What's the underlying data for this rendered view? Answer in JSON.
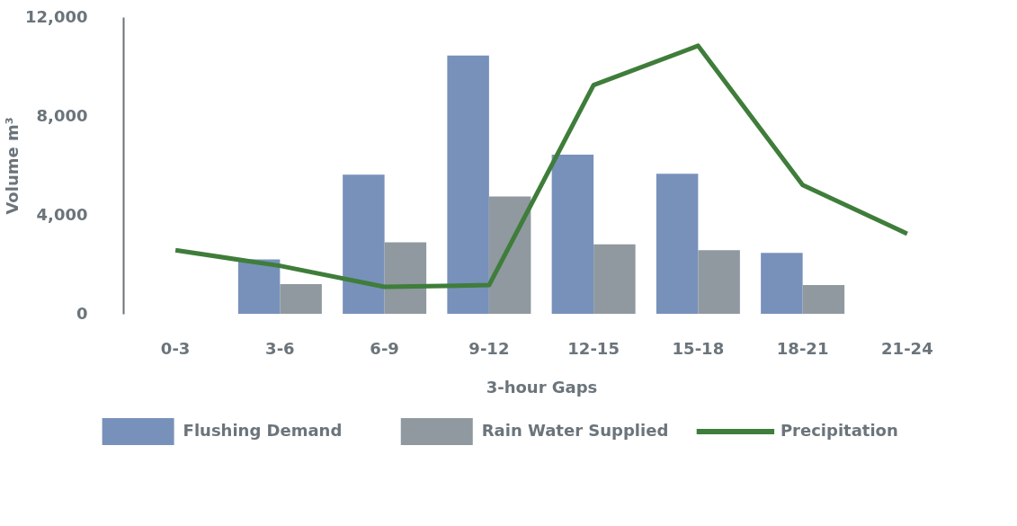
{
  "chart_data": {
    "type": "bar",
    "xlabel": "3-hour Gaps",
    "ylabel": "Volume m³",
    "categories": [
      "0-3",
      "3-6",
      "6-9",
      "9-12",
      "12-15",
      "15-18",
      "18-21",
      "21-24"
    ],
    "ylim": [
      0,
      12000
    ],
    "yticks": [
      0,
      {
        "value": 4000,
        "label": "4,000"
      },
      {
        "value": 8000,
        "label": "8,000"
      },
      {
        "value": 12000,
        "label": "12,000"
      }
    ],
    "grid": false,
    "legend": "bottom",
    "series": [
      {
        "name": "Flushing Demand",
        "color": "#7891bb",
        "values": [
          null,
          2200,
          5630,
          10450,
          6440,
          5660,
          2460,
          null
        ]
      },
      {
        "name": "Rain Water Supplied",
        "color": "#8f999f",
        "values": [
          null,
          1200,
          2890,
          4750,
          2810,
          2570,
          1160,
          null
        ]
      },
      {
        "name": "Precipitation",
        "color": "#3f7d3a",
        "type": "line",
        "values": [
          2570,
          1940,
          1090,
          1160,
          9250,
          10840,
          5210,
          3240
        ]
      }
    ]
  }
}
